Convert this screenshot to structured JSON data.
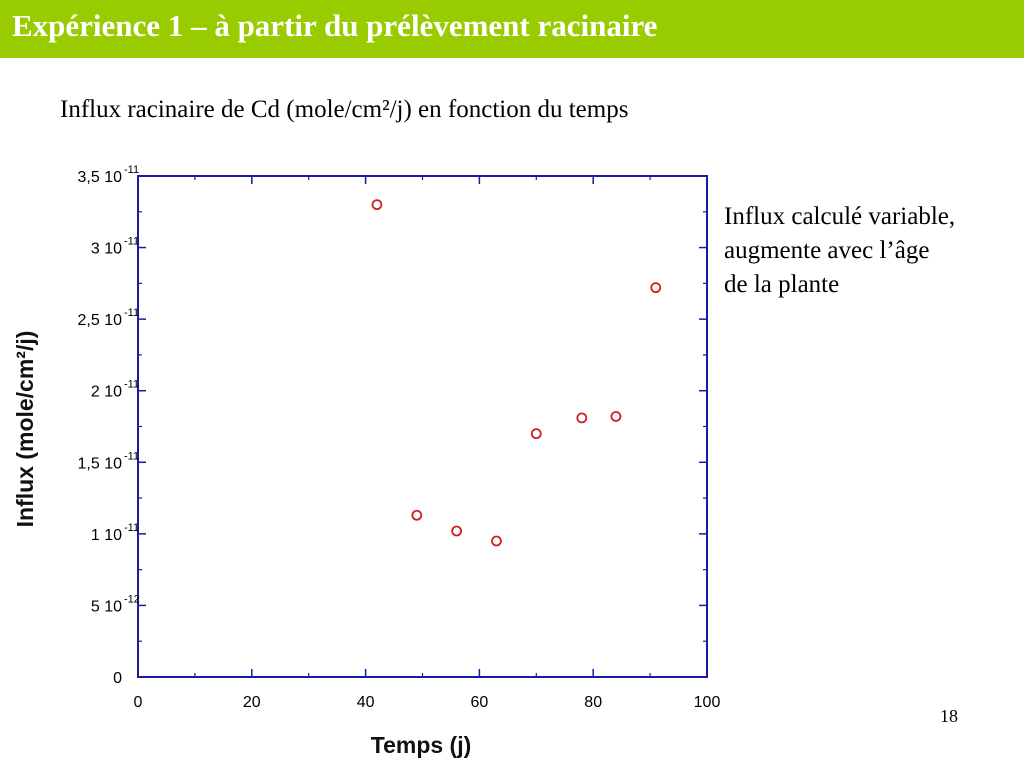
{
  "header": {
    "title": "Expérience 1 – à partir du prélèvement racinaire",
    "background_color": "#99cc00"
  },
  "subtitle": "Influx racinaire de Cd (mole/cm²/j) en fonction du temps",
  "annotation": {
    "lines": [
      "Influx calculé variable,",
      "augmente avec l’âge",
      "de la plante"
    ]
  },
  "page_number": "18",
  "chart_data": {
    "type": "scatter",
    "xlabel": "Temps (j)",
    "ylabel": "Influx (mole/cm²/j)",
    "xlim": [
      0,
      100
    ],
    "ylim": [
      0,
      3.5e-11
    ],
    "x_ticks": [
      {
        "value": 0,
        "label": "0"
      },
      {
        "value": 20,
        "label": "20"
      },
      {
        "value": 40,
        "label": "40"
      },
      {
        "value": 60,
        "label": "60"
      },
      {
        "value": 80,
        "label": "80"
      },
      {
        "value": 100,
        "label": "100"
      }
    ],
    "y_ticks": [
      {
        "value": 0,
        "label": "0",
        "exp": ""
      },
      {
        "value": 5e-12,
        "label": "5 10",
        "exp": "-12"
      },
      {
        "value": 1e-11,
        "label": "1 10",
        "exp": "-11"
      },
      {
        "value": 1.5e-11,
        "label": "1,5 10",
        "exp": "-11"
      },
      {
        "value": 2e-11,
        "label": "2 10",
        "exp": "-11"
      },
      {
        "value": 2.5e-11,
        "label": "2,5 10",
        "exp": "-11"
      },
      {
        "value": 3e-11,
        "label": "3 10",
        "exp": "-11"
      },
      {
        "value": 3.5e-11,
        "label": "3,5 10",
        "exp": "-11"
      }
    ],
    "points": [
      {
        "x": 42,
        "y": 3.3e-11
      },
      {
        "x": 49,
        "y": 1.13e-11
      },
      {
        "x": 56,
        "y": 1.02e-11
      },
      {
        "x": 63,
        "y": 9.5e-12
      },
      {
        "x": 70,
        "y": 1.7e-11
      },
      {
        "x": 78,
        "y": 1.81e-11
      },
      {
        "x": 84,
        "y": 1.82e-11
      },
      {
        "x": 91,
        "y": 2.72e-11
      }
    ],
    "marker_color": "#cc2222",
    "frame_color": "#1a1aa0",
    "grid": false
  }
}
